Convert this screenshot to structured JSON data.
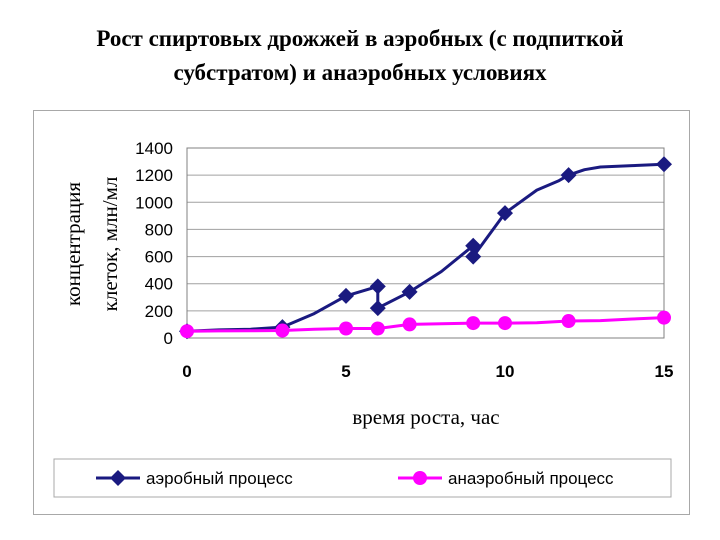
{
  "title_line1": "Рост спиртовых дрожжей в аэробных (с подпиткой",
  "title_line2": "субстратом) и анаэробных условиях",
  "chart_data": {
    "type": "line",
    "title": "Рост спиртовых дрожжей в аэробных (с подпиткой субстратом) и анаэробных условиях",
    "xlabel": "время роста, час",
    "ylabel_line1": "концентрация",
    "ylabel_line2": "клеток, млн/мл",
    "xlim": [
      0,
      15
    ],
    "ylim": [
      0,
      1400
    ],
    "x_ticks": [
      0,
      5,
      10,
      15
    ],
    "y_ticks": [
      0,
      200,
      400,
      600,
      800,
      1000,
      1200,
      1400
    ],
    "grid": "horizontal",
    "legend_position": "bottom",
    "series": [
      {
        "name": "аэробный процесс",
        "color": "#1a1a80",
        "marker": "diamond",
        "points": [
          [
            0,
            50
          ],
          [
            3,
            80
          ],
          [
            5,
            310
          ],
          [
            6,
            380
          ],
          [
            6,
            220
          ],
          [
            7,
            340
          ],
          [
            9,
            680
          ],
          [
            9,
            600
          ],
          [
            10,
            920
          ],
          [
            12,
            1200
          ],
          [
            15,
            1280
          ]
        ],
        "curve": [
          [
            0,
            50
          ],
          [
            1,
            60
          ],
          [
            2,
            65
          ],
          [
            3,
            80
          ],
          [
            4,
            180
          ],
          [
            5,
            310
          ],
          [
            6,
            380
          ],
          [
            6,
            220
          ],
          [
            7,
            340
          ],
          [
            8,
            490
          ],
          [
            9,
            680
          ],
          [
            9,
            600
          ],
          [
            10,
            920
          ],
          [
            11,
            1090
          ],
          [
            11.7,
            1160
          ],
          [
            12,
            1200
          ],
          [
            12.5,
            1240
          ],
          [
            13,
            1260
          ],
          [
            14,
            1270
          ],
          [
            15,
            1280
          ]
        ]
      },
      {
        "name": "анаэробный процесс",
        "color": "#ff00ff",
        "marker": "circle",
        "points": [
          [
            0,
            50
          ],
          [
            3,
            55
          ],
          [
            5,
            70
          ],
          [
            6,
            70
          ],
          [
            7,
            100
          ],
          [
            9,
            110
          ],
          [
            10,
            110
          ],
          [
            12,
            125
          ],
          [
            15,
            150
          ]
        ],
        "curve": [
          [
            0,
            50
          ],
          [
            1,
            52
          ],
          [
            2,
            53
          ],
          [
            3,
            55
          ],
          [
            4,
            65
          ],
          [
            5,
            70
          ],
          [
            6,
            70
          ],
          [
            7,
            100
          ],
          [
            8,
            105
          ],
          [
            9,
            110
          ],
          [
            10,
            110
          ],
          [
            11,
            112
          ],
          [
            12,
            125
          ],
          [
            13,
            128
          ],
          [
            14,
            140
          ],
          [
            15,
            150
          ]
        ]
      }
    ]
  }
}
